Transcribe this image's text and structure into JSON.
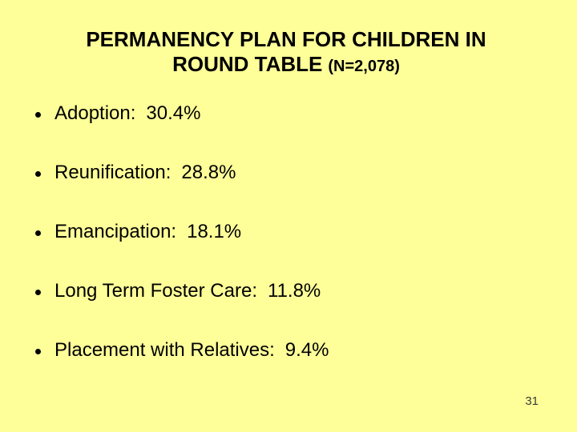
{
  "slide": {
    "title": {
      "line1": "PERMANENCY PLAN FOR CHILDREN IN",
      "line2_main": "ROUND TABLE",
      "line2_note": "(N=2,078)"
    },
    "bullets": [
      {
        "label": "Adoption:",
        "value": "30.4%"
      },
      {
        "label": "Reunification:",
        "value": "28.8%"
      },
      {
        "label": "Emancipation:",
        "value": "18.1%"
      },
      {
        "label": "Long Term Foster Care:",
        "value": "11.8%"
      },
      {
        "label": "Placement with Relatives:",
        "value": "9.4%"
      }
    ],
    "page_number": "31",
    "colors": {
      "background": "#FFFF99",
      "text": "#000000",
      "page_number": "#3a3a3a"
    }
  }
}
